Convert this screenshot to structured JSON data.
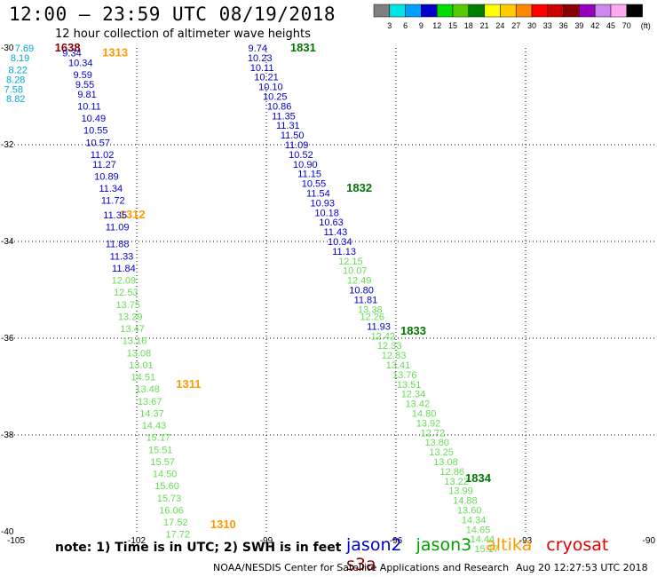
{
  "header": {
    "title": "12:00 – 23:59 UTC 08/19/2018",
    "subtitle": "12 hour collection of altimeter wave heights"
  },
  "colorbar": {
    "labels": [
      "3",
      "6",
      "9",
      "12",
      "15",
      "18",
      "21",
      "24",
      "27",
      "30",
      "33",
      "36",
      "39",
      "42",
      "45",
      "70"
    ],
    "unit": "(ft)",
    "colors": [
      "#808080",
      "#00e5e5",
      "#00a0ff",
      "#0000cc",
      "#00dd00",
      "#55cc00",
      "#008000",
      "#ffff00",
      "#ffcc00",
      "#ff8800",
      "#ff0000",
      "#cc0000",
      "#880000",
      "#9900bb",
      "#cc88ee",
      "#ffaaee",
      "#000000"
    ]
  },
  "footer": {
    "note": "note:  1) Time is in UTC;  2) SWH is in feet",
    "legend": [
      {
        "name": "jason2",
        "color": "#0000cc"
      },
      {
        "name": "jason3",
        "color": "#00a000"
      },
      {
        "name": "altika",
        "color": "#ff9900"
      },
      {
        "name": "cryosat",
        "color": "#dd0000"
      },
      {
        "name": "s3a",
        "color": "#880000"
      }
    ],
    "credit": "NOAA/NESDIS Center for Satellite Applications and Research",
    "timestamp": "Aug 20 12:27:53 UTC 2018"
  },
  "chart_data": {
    "type": "scatter",
    "xlim": [
      -105,
      -90
    ],
    "ylim": [
      -40,
      -30
    ],
    "xticks": [
      "-105",
      "-102",
      "-99",
      "-96",
      "-93",
      "-90"
    ],
    "yticks": [
      "-30",
      "-32",
      "-34",
      "-36",
      "-38",
      "-40"
    ],
    "grid": true,
    "series": [
      {
        "name": "s3a",
        "color": "#880000",
        "points": [
          {
            "x": -103.6,
            "y": -30.0,
            "v": "1638"
          }
        ]
      },
      {
        "name": "cryosat",
        "color": "#00aacc",
        "points": [
          {
            "x": -104.6,
            "y": -30.0,
            "v": "7.69"
          },
          {
            "x": -104.7,
            "y": -30.2,
            "v": "8.19"
          },
          {
            "x": -104.75,
            "y": -30.45,
            "v": "8.22"
          },
          {
            "x": -104.8,
            "y": -30.65,
            "v": "8.28"
          },
          {
            "x": -104.85,
            "y": -30.85,
            "v": "7.58"
          },
          {
            "x": -104.8,
            "y": -31.05,
            "v": "8.82"
          }
        ]
      },
      {
        "name": "altika",
        "color": "#ff9900",
        "points": [
          {
            "x": -102.5,
            "y": -30.1,
            "v": "1313"
          },
          {
            "x": -102.1,
            "y": -33.45,
            "v": "1312"
          },
          {
            "x": -100.8,
            "y": -36.95,
            "v": "1311"
          },
          {
            "x": -100.0,
            "y": -39.85,
            "v": "1310"
          }
        ]
      },
      {
        "name": "jason2",
        "color": "#0000cc",
        "points": [
          {
            "x": -103.5,
            "y": -30.1,
            "v": "9.34"
          },
          {
            "x": -103.3,
            "y": -30.3,
            "v": "10.34"
          },
          {
            "x": -103.25,
            "y": -30.55,
            "v": "9.59"
          },
          {
            "x": -103.2,
            "y": -30.75,
            "v": "9.55"
          },
          {
            "x": -103.15,
            "y": -30.95,
            "v": "9.81"
          },
          {
            "x": -103.1,
            "y": -31.2,
            "v": "10.11"
          },
          {
            "x": -103.0,
            "y": -31.45,
            "v": "10.49"
          },
          {
            "x": -102.95,
            "y": -31.7,
            "v": "10.55"
          },
          {
            "x": -102.9,
            "y": -31.95,
            "v": "10.57"
          },
          {
            "x": -102.8,
            "y": -32.2,
            "v": "11.02"
          },
          {
            "x": -102.75,
            "y": -32.4,
            "v": "11.27"
          },
          {
            "x": -102.7,
            "y": -32.65,
            "v": "10.89"
          },
          {
            "x": -102.6,
            "y": -32.9,
            "v": "11.34"
          },
          {
            "x": -102.55,
            "y": -33.15,
            "v": "11.72"
          },
          {
            "x": -102.5,
            "y": -33.45,
            "v": "11.35"
          },
          {
            "x": -102.45,
            "y": -33.7,
            "v": "11.09"
          },
          {
            "x": -102.45,
            "y": -34.05,
            "v": "11.88"
          },
          {
            "x": -102.35,
            "y": -34.3,
            "v": "11.33"
          },
          {
            "x": -102.3,
            "y": -34.55,
            "v": "11.84"
          },
          {
            "x": -99.2,
            "y": -30.0,
            "v": "9.74"
          },
          {
            "x": -99.15,
            "y": -30.2,
            "v": "10.23"
          },
          {
            "x": -99.1,
            "y": -30.4,
            "v": "10.11"
          },
          {
            "x": -99.0,
            "y": -30.6,
            "v": "10.21"
          },
          {
            "x": -98.9,
            "y": -30.8,
            "v": "10.10"
          },
          {
            "x": -98.8,
            "y": -31.0,
            "v": "10.25"
          },
          {
            "x": -98.7,
            "y": -31.2,
            "v": "10.86"
          },
          {
            "x": -98.6,
            "y": -31.4,
            "v": "11.35"
          },
          {
            "x": -98.5,
            "y": -31.6,
            "v": "11.31"
          },
          {
            "x": -98.4,
            "y": -31.8,
            "v": "11.50"
          },
          {
            "x": -98.3,
            "y": -32.0,
            "v": "11.09"
          },
          {
            "x": -98.2,
            "y": -32.2,
            "v": "10.52"
          },
          {
            "x": -98.1,
            "y": -32.4,
            "v": "10.90"
          },
          {
            "x": -98.0,
            "y": -32.6,
            "v": "11.15"
          },
          {
            "x": -97.9,
            "y": -32.8,
            "v": "10.55"
          },
          {
            "x": -97.8,
            "y": -33.0,
            "v": "11.54"
          },
          {
            "x": -97.7,
            "y": -33.2,
            "v": "10.93"
          },
          {
            "x": -97.6,
            "y": -33.4,
            "v": "10.18"
          },
          {
            "x": -97.5,
            "y": -33.6,
            "v": "10.63"
          },
          {
            "x": -97.4,
            "y": -33.8,
            "v": "11.43"
          },
          {
            "x": -97.3,
            "y": -34.0,
            "v": "10.34"
          },
          {
            "x": -97.2,
            "y": -34.2,
            "v": "11.13"
          },
          {
            "x": -96.8,
            "y": -35.0,
            "v": "10.80"
          },
          {
            "x": -96.7,
            "y": -35.2,
            "v": "11.81"
          },
          {
            "x": -96.4,
            "y": -35.75,
            "v": "11.93"
          }
        ]
      },
      {
        "name": "jason3",
        "color": "#66dd55",
        "points": [
          {
            "x": -102.3,
            "y": -34.8,
            "v": "12.09"
          },
          {
            "x": -102.25,
            "y": -35.05,
            "v": "12.53"
          },
          {
            "x": -102.2,
            "y": -35.3,
            "v": "13.75"
          },
          {
            "x": -102.15,
            "y": -35.55,
            "v": "13.29"
          },
          {
            "x": -102.1,
            "y": -35.8,
            "v": "13.47"
          },
          {
            "x": -102.05,
            "y": -36.05,
            "v": "13.16"
          },
          {
            "x": -101.95,
            "y": -36.3,
            "v": "13.08"
          },
          {
            "x": -101.9,
            "y": -36.55,
            "v": "13.01"
          },
          {
            "x": -101.85,
            "y": -36.8,
            "v": "14.51"
          },
          {
            "x": -101.75,
            "y": -37.05,
            "v": "13.48"
          },
          {
            "x": -101.7,
            "y": -37.3,
            "v": "13.67"
          },
          {
            "x": -101.65,
            "y": -37.55,
            "v": "14.37"
          },
          {
            "x": -101.6,
            "y": -37.8,
            "v": "14.43"
          },
          {
            "x": -101.5,
            "y": -38.05,
            "v": "15.17"
          },
          {
            "x": -101.45,
            "y": -38.3,
            "v": "15.51"
          },
          {
            "x": -101.4,
            "y": -38.55,
            "v": "15.57"
          },
          {
            "x": -101.35,
            "y": -38.8,
            "v": "14.50"
          },
          {
            "x": -101.3,
            "y": -39.05,
            "v": "15.60"
          },
          {
            "x": -101.25,
            "y": -39.3,
            "v": "15.73"
          },
          {
            "x": -101.2,
            "y": -39.55,
            "v": "16.06"
          },
          {
            "x": -101.1,
            "y": -39.8,
            "v": "17.52"
          },
          {
            "x": -101.05,
            "y": -40.05,
            "v": "17.72"
          },
          {
            "x": -97.05,
            "y": -34.4,
            "v": "12.15"
          },
          {
            "x": -96.95,
            "y": -34.6,
            "v": "10.07"
          },
          {
            "x": -96.85,
            "y": -34.8,
            "v": "12.49"
          },
          {
            "x": -96.6,
            "y": -35.4,
            "v": "13.38"
          },
          {
            "x": -96.55,
            "y": -35.55,
            "v": "12.26"
          },
          {
            "x": -96.3,
            "y": -35.95,
            "v": "12.42"
          },
          {
            "x": -96.15,
            "y": -36.15,
            "v": "12.33"
          },
          {
            "x": -96.05,
            "y": -36.35,
            "v": "12.83"
          },
          {
            "x": -95.95,
            "y": -36.55,
            "v": "13.41"
          },
          {
            "x": -95.8,
            "y": -36.75,
            "v": "13.76"
          },
          {
            "x": -95.7,
            "y": -36.95,
            "v": "13.51"
          },
          {
            "x": -95.6,
            "y": -37.15,
            "v": "12.34"
          },
          {
            "x": -95.5,
            "y": -37.35,
            "v": "13.42"
          },
          {
            "x": -95.35,
            "y": -37.55,
            "v": "14.80"
          },
          {
            "x": -95.25,
            "y": -37.75,
            "v": "13.92"
          },
          {
            "x": -95.15,
            "y": -37.95,
            "v": "12.72"
          },
          {
            "x": -95.05,
            "y": -38.15,
            "v": "13.80"
          },
          {
            "x": -94.95,
            "y": -38.35,
            "v": "13.25"
          },
          {
            "x": -94.85,
            "y": -38.55,
            "v": "13.08"
          },
          {
            "x": -94.7,
            "y": -38.75,
            "v": "12.86"
          },
          {
            "x": -94.6,
            "y": -38.95,
            "v": "13.22"
          },
          {
            "x": -94.5,
            "y": -39.15,
            "v": "13.99"
          },
          {
            "x": -94.4,
            "y": -39.35,
            "v": "14.88"
          },
          {
            "x": -94.3,
            "y": -39.55,
            "v": "13.60"
          },
          {
            "x": -94.2,
            "y": -39.75,
            "v": "14.34"
          },
          {
            "x": -94.1,
            "y": -39.95,
            "v": "14.65"
          },
          {
            "x": -94.0,
            "y": -40.15,
            "v": "14.44"
          },
          {
            "x": -93.9,
            "y": -40.35,
            "v": "15.17"
          }
        ]
      },
      {
        "name": "jason3 time",
        "color": "#007700",
        "bold": true,
        "points": [
          {
            "x": -98.15,
            "y": -30.0,
            "v": "1831"
          },
          {
            "x": -96.85,
            "y": -32.9,
            "v": "1832"
          },
          {
            "x": -95.6,
            "y": -35.85,
            "v": "1833"
          },
          {
            "x": -94.1,
            "y": -38.9,
            "v": "1834"
          }
        ]
      }
    ]
  }
}
